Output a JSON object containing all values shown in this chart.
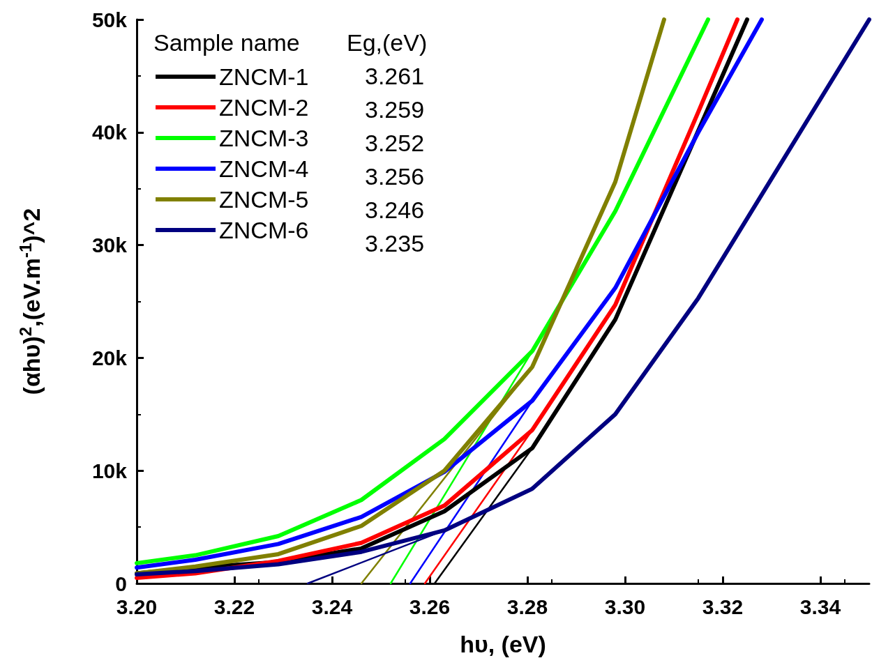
{
  "chart_data": {
    "type": "line",
    "xlabel": "hυ, (eV)",
    "ylabel": "(αhυ)$^{2}$,(eV.m$^{-1}$)^2",
    "legend_title": "Sample name",
    "annotations": [
      "Eg,(eV)",
      "3.261",
      "3.259",
      "3.252",
      "3.256",
      "3.246",
      "3.235"
    ],
    "xlim": [
      3.2,
      3.35
    ],
    "ylim": [
      0,
      50000
    ],
    "xticks": [
      {
        "value": 3.2,
        "label": "3.20"
      },
      {
        "value": 3.22,
        "label": "3.22"
      },
      {
        "value": 3.24,
        "label": "3.24"
      },
      {
        "value": 3.26,
        "label": "3.26"
      },
      {
        "value": 3.28,
        "label": "3.28"
      },
      {
        "value": 3.3,
        "label": "3.30"
      },
      {
        "value": 3.32,
        "label": "3.32"
      },
      {
        "value": 3.34,
        "label": "3.34"
      }
    ],
    "yticks": [
      0,
      {
        "value": 10000,
        "label": "10k"
      },
      {
        "value": 20000,
        "label": "20k"
      },
      {
        "value": 30000,
        "label": "30k"
      },
      {
        "value": 40000,
        "label": "40k"
      },
      {
        "value": 50000,
        "label": "50k"
      }
    ],
    "grid": false,
    "legend": "top left",
    "marker": "none",
    "line_style": "solid",
    "series": [
      {
        "name": "ZNCM-1",
        "color": "#000000",
        "x": [
          3.2,
          3.212,
          3.229,
          3.246,
          3.263,
          3.281,
          3.298,
          3.325
        ],
        "values": [
          900,
          1400,
          1900,
          3100,
          6400,
          12000,
          23400,
          50000
        ]
      },
      {
        "name": "ZNCM-2",
        "color": "#ff0000",
        "x": [
          3.2,
          3.212,
          3.229,
          3.246,
          3.263,
          3.281,
          3.298,
          3.315,
          3.323
        ],
        "values": [
          500,
          900,
          2000,
          3600,
          6900,
          13600,
          24700,
          41800,
          50000
        ]
      },
      {
        "name": "ZNCM-3",
        "color": "#00ff00",
        "x": [
          3.2,
          3.212,
          3.229,
          3.246,
          3.263,
          3.281,
          3.298,
          3.317
        ],
        "values": [
          1800,
          2500,
          4200,
          7400,
          12800,
          20600,
          33000,
          50000
        ]
      },
      {
        "name": "ZNCM-4",
        "color": "#0000ff",
        "x": [
          3.2,
          3.212,
          3.229,
          3.246,
          3.263,
          3.281,
          3.298,
          3.315,
          3.328
        ],
        "values": [
          1400,
          2100,
          3500,
          5900,
          9900,
          16200,
          26200,
          40000,
          50000
        ]
      },
      {
        "name": "ZNCM-5",
        "color": "#808000",
        "x": [
          3.2,
          3.212,
          3.229,
          3.246,
          3.263,
          3.281,
          3.298,
          3.308
        ],
        "values": [
          900,
          1500,
          2600,
          5100,
          10000,
          19200,
          35600,
          50000
        ]
      },
      {
        "name": "ZNCM-6",
        "color": "#000080",
        "x": [
          3.2,
          3.212,
          3.229,
          3.246,
          3.263,
          3.281,
          3.298,
          3.315,
          3.35
        ],
        "values": [
          800,
          1100,
          1700,
          2800,
          4700,
          8400,
          15000,
          25300,
          50000
        ]
      },
      {
        "color": "#000000",
        "x": [
          3.261,
          3.281
        ],
        "values": [
          0,
          12000
        ]
      },
      {
        "color": "#ff0000",
        "x": [
          3.259,
          3.281
        ],
        "values": [
          0,
          13600
        ]
      },
      {
        "color": "#00ff00",
        "x": [
          3.252,
          3.281
        ],
        "values": [
          0,
          20600
        ]
      },
      {
        "color": "#0000ff",
        "x": [
          3.256,
          3.281
        ],
        "values": [
          0,
          16200
        ]
      },
      {
        "color": "#808000",
        "x": [
          3.246,
          3.281
        ],
        "values": [
          0,
          19200
        ]
      },
      {
        "color": "#000080",
        "x": [
          3.235,
          3.263
        ],
        "values": [
          0,
          4700
        ]
      }
    ]
  }
}
